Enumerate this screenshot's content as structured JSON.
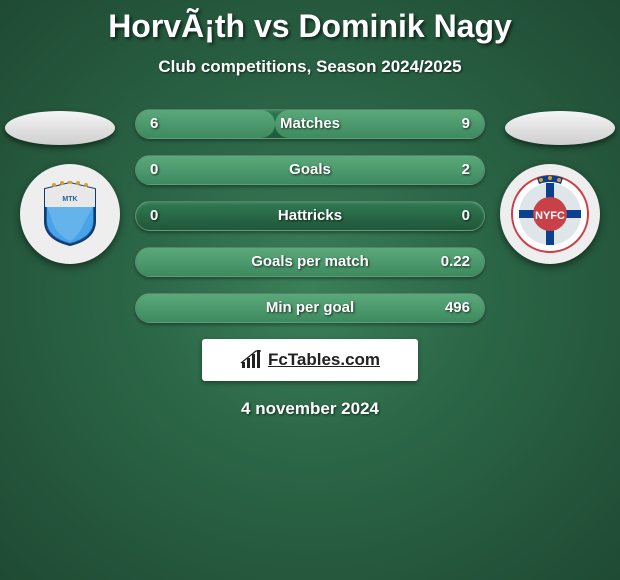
{
  "title": "HorvÃ¡th vs Dominik Nagy",
  "subtitle": "Club competitions, Season 2024/2025",
  "date": "4 november 2024",
  "brand": "FcTables.com",
  "colors": {
    "pill_base": "#20573a",
    "pill_fill": "#3d8a5e",
    "background_center": "#3a8058",
    "background_edge": "#1f4a33"
  },
  "player1": {
    "photo_blank": true,
    "crest": "mtk"
  },
  "player2": {
    "photo_blank": true,
    "crest": "nyfc"
  },
  "stats": [
    {
      "label": "Matches",
      "v1": "6",
      "v2": "9",
      "p1": 40,
      "p2": 60
    },
    {
      "label": "Goals",
      "v1": "0",
      "v2": "2",
      "p1": 0,
      "p2": 100
    },
    {
      "label": "Hattricks",
      "v1": "0",
      "v2": "0",
      "p1": 0,
      "p2": 0
    },
    {
      "label": "Goals per match",
      "v1": "",
      "v2": "0.22",
      "p1": 0,
      "p2": 100
    },
    {
      "label": "Min per goal",
      "v1": "",
      "v2": "496",
      "p1": 0,
      "p2": 100
    }
  ]
}
